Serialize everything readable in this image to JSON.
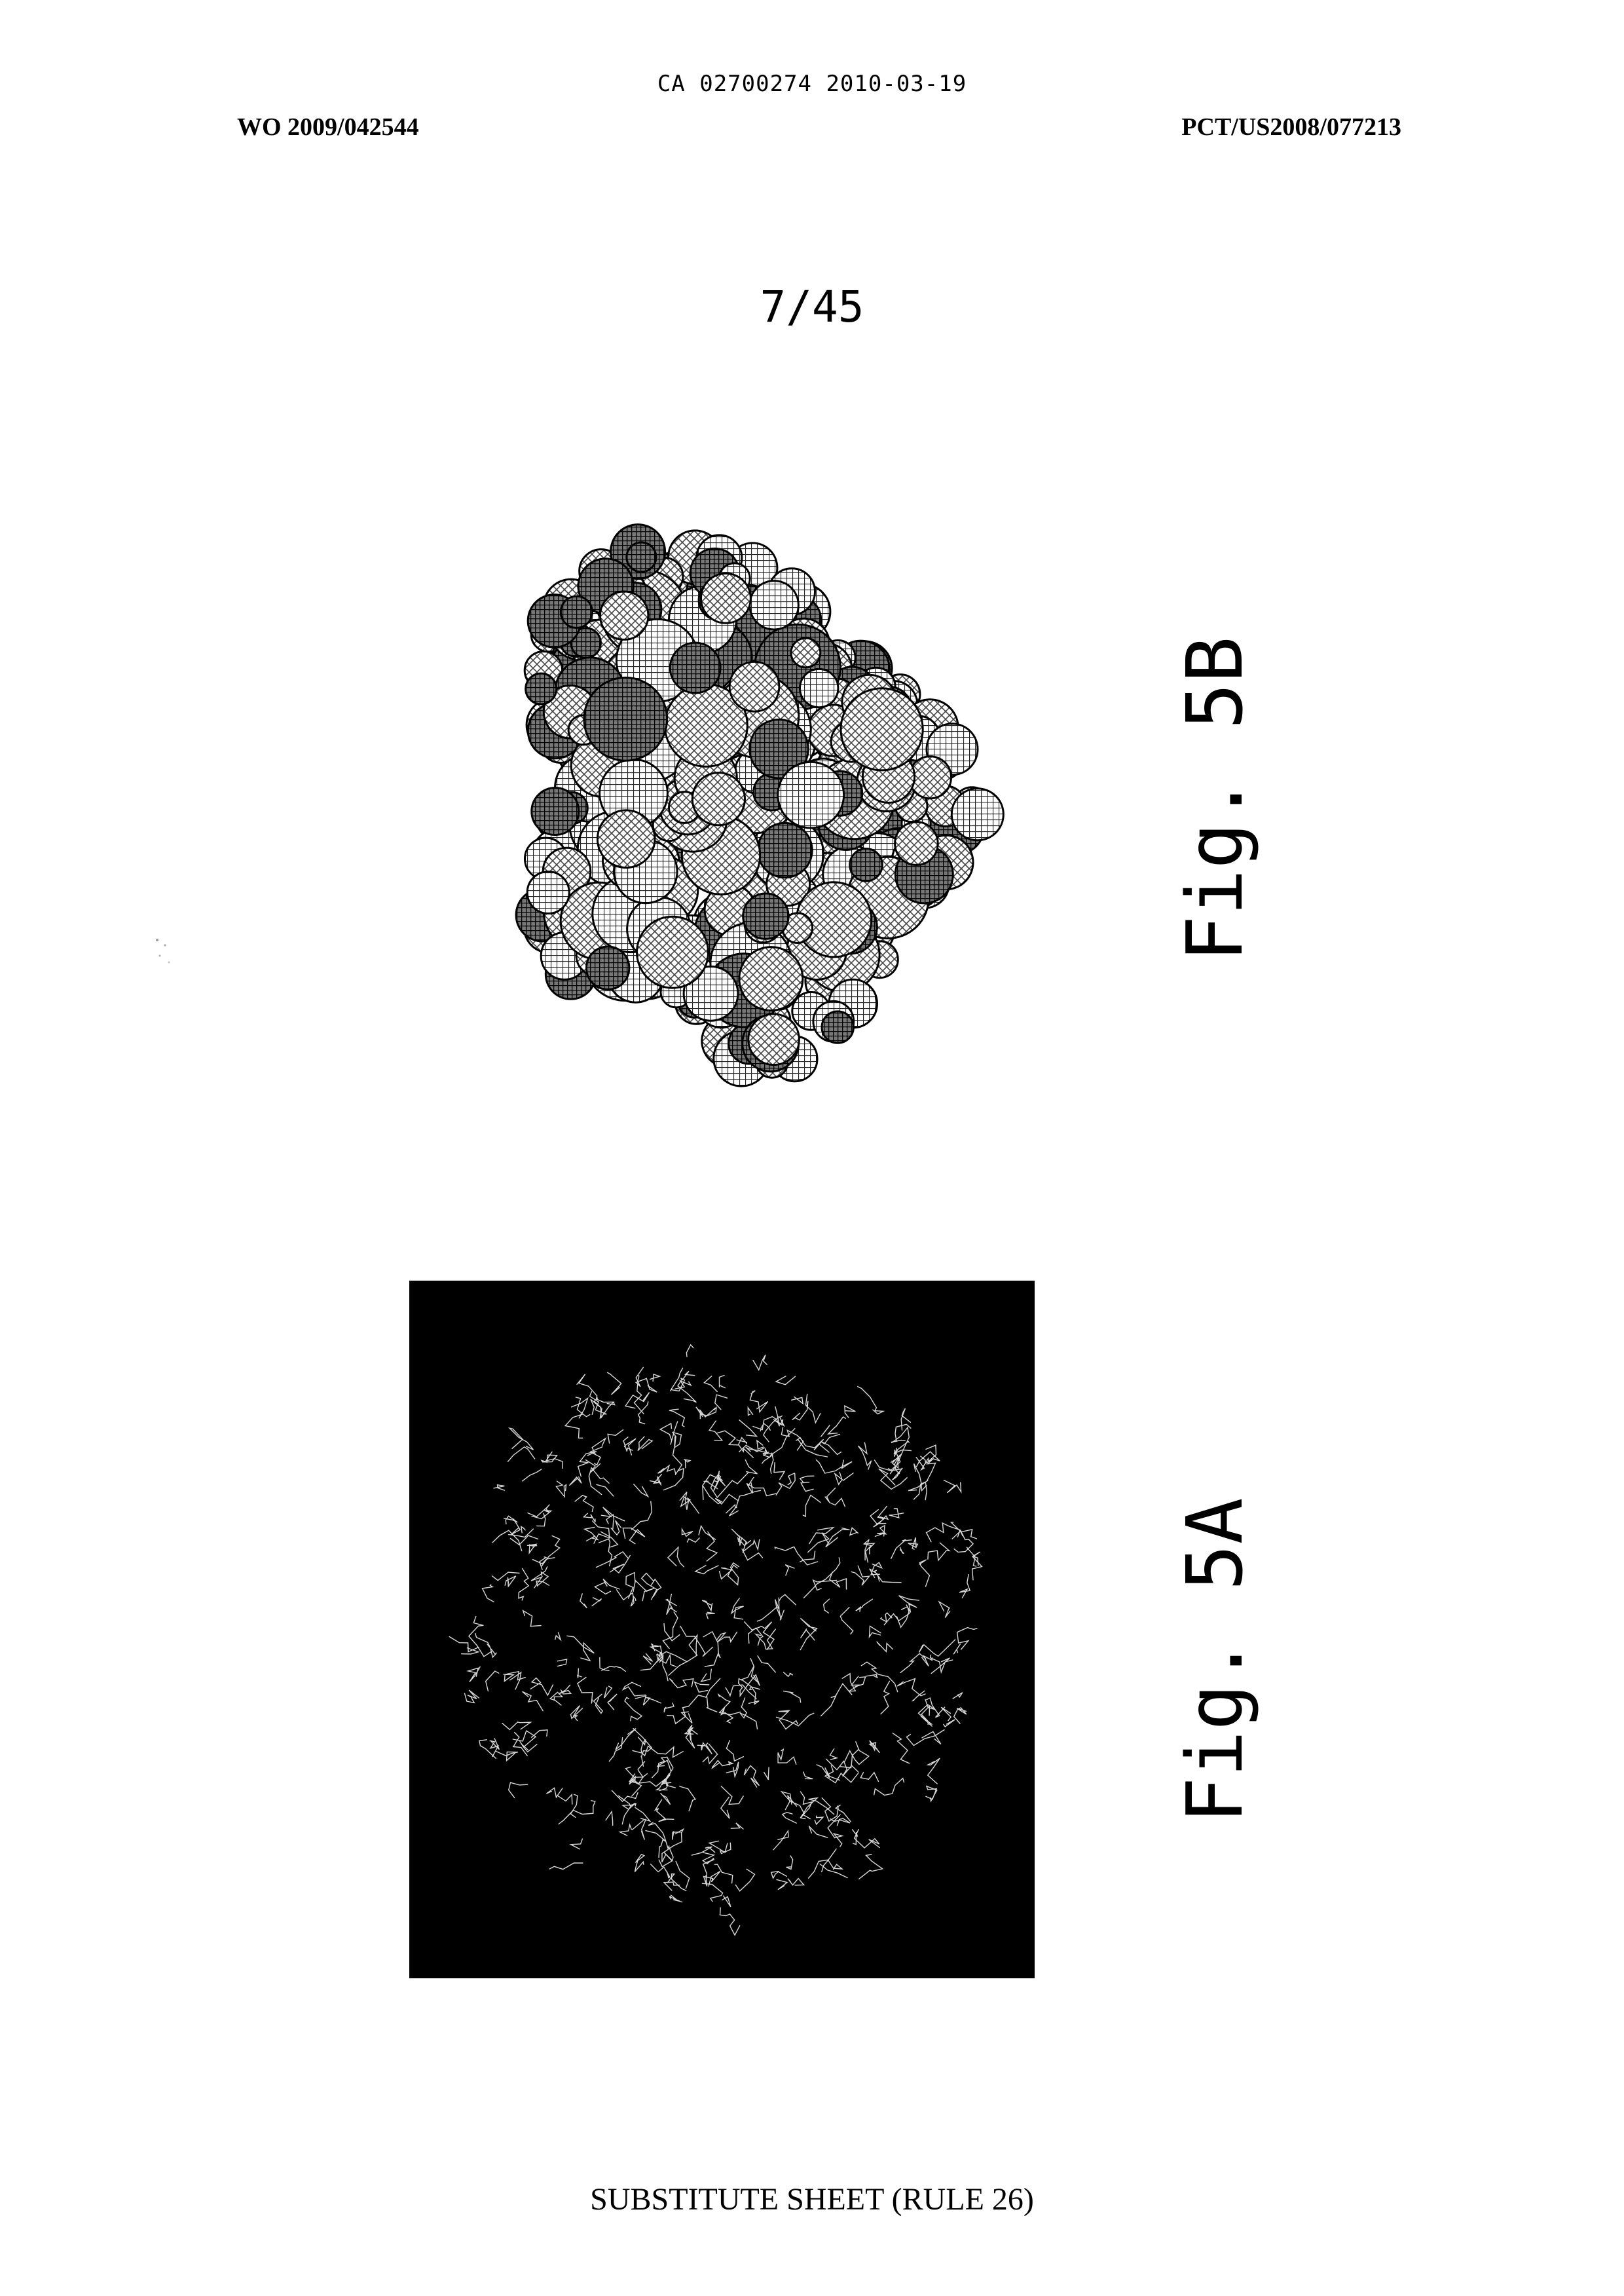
{
  "header": {
    "ca_stamp": "CA 02700274 2010-03-19",
    "wo_number": "WO 2009/042544",
    "pct_number": "PCT/US2008/077213"
  },
  "sheet": {
    "number": "7/45"
  },
  "figures": [
    {
      "id": "5B",
      "label": "Fig. 5B"
    },
    {
      "id": "5A",
      "label": "Fig. 5A"
    }
  ],
  "footer": {
    "text": "SUBSTITUTE SHEET (RULE 26)"
  }
}
